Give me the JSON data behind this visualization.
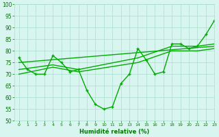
{
  "lines": [
    {
      "x": [
        0,
        1,
        2,
        3,
        4,
        5,
        6,
        7,
        8,
        9,
        10,
        11,
        12,
        13,
        14,
        15,
        16,
        17,
        18,
        19,
        20,
        21,
        22,
        23
      ],
      "y": [
        77,
        72,
        70,
        70,
        78,
        75,
        71,
        72,
        63,
        57,
        55,
        56,
        66,
        70,
        81,
        76,
        70,
        71,
        83,
        83,
        81,
        82,
        87,
        93
      ],
      "color": "#00aa00",
      "lw": 1.0,
      "marker": "+"
    },
    {
      "x": [
        0,
        4,
        7,
        14,
        18,
        21,
        23
      ],
      "y": [
        70,
        73,
        71,
        75,
        80,
        80,
        81
      ],
      "color": "#00aa00",
      "lw": 1.0,
      "marker": null
    },
    {
      "x": [
        0,
        4,
        7,
        14,
        18,
        21,
        23
      ],
      "y": [
        72,
        74,
        72,
        77,
        82,
        82,
        83
      ],
      "color": "#00aa00",
      "lw": 1.0,
      "marker": null
    },
    {
      "x": [
        0,
        23
      ],
      "y": [
        75,
        82
      ],
      "color": "#00aa00",
      "lw": 1.0,
      "marker": null
    }
  ],
  "xlabel": "Humidité relative (%)",
  "xlim": [
    -0.5,
    23
  ],
  "ylim": [
    50,
    100
  ],
  "yticks": [
    50,
    55,
    60,
    65,
    70,
    75,
    80,
    85,
    90,
    95,
    100
  ],
  "xticks": [
    0,
    1,
    2,
    3,
    4,
    5,
    6,
    7,
    8,
    9,
    10,
    11,
    12,
    13,
    14,
    15,
    16,
    17,
    18,
    19,
    20,
    21,
    22,
    23
  ],
  "bg_color": "#d8f5f0",
  "grid_color": "#aaddcc",
  "line_color": "#00aa00",
  "xlabel_color": "#007700",
  "tick_color": "#007700"
}
